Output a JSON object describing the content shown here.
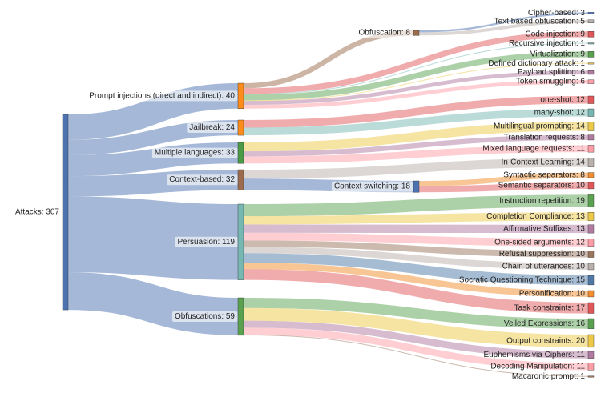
{
  "chart_data": {
    "type": "sankey",
    "title": "",
    "nodes": [
      {
        "id": "attacks",
        "label": "Attacks: 307",
        "value": 307,
        "color": "#4c72b0"
      },
      {
        "id": "pi",
        "label": "Prompt injections (direct and indirect): 40",
        "value": 40,
        "color": "#ff8c1a"
      },
      {
        "id": "jb",
        "label": "Jailbreak: 24",
        "value": 24,
        "color": "#ff8c1a"
      },
      {
        "id": "ml",
        "label": "Multiple languages: 33",
        "value": 33,
        "color": "#4a9a48"
      },
      {
        "id": "cb",
        "label": "Context-based: 32",
        "value": 32,
        "color": "#9c6b4e"
      },
      {
        "id": "pe",
        "label": "Persuasion: 119",
        "value": 119,
        "color": "#76b7b2"
      },
      {
        "id": "ob",
        "label": "Obfuscations: 59",
        "value": 59,
        "color": "#59a14f"
      },
      {
        "id": "obf8",
        "label": "Obfuscation: 8",
        "value": 8,
        "color": "#9c6b4e"
      },
      {
        "id": "cs",
        "label": "Context switching: 18",
        "value": 18,
        "color": "#4c72b0"
      },
      {
        "id": "cip",
        "label": "Cipher-based: 3",
        "value": 3,
        "color": "#4c72b0"
      },
      {
        "id": "tbo",
        "label": "Text based obfuscation: 5",
        "value": 5,
        "color": "#bab0ac"
      },
      {
        "id": "ci",
        "label": "Code injection: 9",
        "value": 9,
        "color": "#e15759"
      },
      {
        "id": "ri",
        "label": "Recursive injection: 1",
        "value": 1,
        "color": "#76b7b2"
      },
      {
        "id": "vi",
        "label": "Virtualization: 9",
        "value": 9,
        "color": "#59a14f"
      },
      {
        "id": "dda",
        "label": "Defined dictionary attack: 1",
        "value": 1,
        "color": "#edc948"
      },
      {
        "id": "ps",
        "label": "Payload splitting: 6",
        "value": 6,
        "color": "#b07aa1"
      },
      {
        "id": "ts",
        "label": "Token smuggling: 6",
        "value": 6,
        "color": "#ff9da7"
      },
      {
        "id": "os",
        "label": "one-shot: 12",
        "value": 12,
        "color": "#e15759"
      },
      {
        "id": "ms",
        "label": "many-shot: 12",
        "value": 12,
        "color": "#76b7b2"
      },
      {
        "id": "mp",
        "label": "Multilingual prompting: 14",
        "value": 14,
        "color": "#edc948"
      },
      {
        "id": "tr",
        "label": "Translation requests: 8",
        "value": 8,
        "color": "#b07aa1"
      },
      {
        "id": "mlr",
        "label": "Mixed language requests: 11",
        "value": 11,
        "color": "#ff9da7"
      },
      {
        "id": "icl",
        "label": "In-Context Learning: 14",
        "value": 14,
        "color": "#bab0ac"
      },
      {
        "id": "syn",
        "label": "Syntactic separators: 8",
        "value": 8,
        "color": "#f28e2b"
      },
      {
        "id": "sem",
        "label": "Semantic separators: 10",
        "value": 10,
        "color": "#e15759"
      },
      {
        "id": "ir",
        "label": "Instruction repetition: 19",
        "value": 19,
        "color": "#59a14f"
      },
      {
        "id": "cc",
        "label": "Completion Compliance: 13",
        "value": 13,
        "color": "#edc948"
      },
      {
        "id": "as",
        "label": "Affirmative Suffixes: 13",
        "value": 13,
        "color": "#b07aa1"
      },
      {
        "id": "osa",
        "label": "One-sided arguments: 12",
        "value": 12,
        "color": "#ff9da7"
      },
      {
        "id": "rs",
        "label": "Refusal suppression: 10",
        "value": 10,
        "color": "#9c755f"
      },
      {
        "id": "cu",
        "label": "Chain of utterances: 10",
        "value": 10,
        "color": "#bab0ac"
      },
      {
        "id": "sqt",
        "label": "Socratic Questioning Technique: 15",
        "value": 15,
        "color": "#4e79a7"
      },
      {
        "id": "per",
        "label": "Personification: 10",
        "value": 10,
        "color": "#f28e2b"
      },
      {
        "id": "tc",
        "label": "Task constraints: 17",
        "value": 17,
        "color": "#e15759"
      },
      {
        "id": "ve",
        "label": "Veiled Expressions: 16",
        "value": 16,
        "color": "#59a14f"
      },
      {
        "id": "oc",
        "label": "Output constraints: 20",
        "value": 20,
        "color": "#edc948"
      },
      {
        "id": "euc",
        "label": "Euphemisms via Ciphers: 11",
        "value": 11,
        "color": "#b07aa1"
      },
      {
        "id": "dm",
        "label": "Decoding Manipulation: 11",
        "value": 11,
        "color": "#ff9da7"
      },
      {
        "id": "mac",
        "label": "Macaronic prompt: 1",
        "value": 1,
        "color": "#9c755f"
      }
    ],
    "links": [
      {
        "source": "attacks",
        "target": "pi",
        "value": 40
      },
      {
        "source": "attacks",
        "target": "jb",
        "value": 24
      },
      {
        "source": "attacks",
        "target": "ml",
        "value": 33
      },
      {
        "source": "attacks",
        "target": "cb",
        "value": 32
      },
      {
        "source": "attacks",
        "target": "pe",
        "value": 119
      },
      {
        "source": "attacks",
        "target": "ob",
        "value": 59
      },
      {
        "source": "pi",
        "target": "obf8",
        "value": 8
      },
      {
        "source": "pi",
        "target": "ci",
        "value": 9
      },
      {
        "source": "pi",
        "target": "ri",
        "value": 1
      },
      {
        "source": "pi",
        "target": "vi",
        "value": 9
      },
      {
        "source": "pi",
        "target": "dda",
        "value": 1
      },
      {
        "source": "pi",
        "target": "ps",
        "value": 6
      },
      {
        "source": "pi",
        "target": "ts",
        "value": 6
      },
      {
        "source": "obf8",
        "target": "cip",
        "value": 3
      },
      {
        "source": "obf8",
        "target": "tbo",
        "value": 5
      },
      {
        "source": "jb",
        "target": "os",
        "value": 12
      },
      {
        "source": "jb",
        "target": "ms",
        "value": 12
      },
      {
        "source": "ml",
        "target": "mp",
        "value": 14
      },
      {
        "source": "ml",
        "target": "tr",
        "value": 8
      },
      {
        "source": "ml",
        "target": "mlr",
        "value": 11
      },
      {
        "source": "cb",
        "target": "icl",
        "value": 14
      },
      {
        "source": "cb",
        "target": "cs",
        "value": 18
      },
      {
        "source": "cs",
        "target": "syn",
        "value": 8
      },
      {
        "source": "cs",
        "target": "sem",
        "value": 10
      },
      {
        "source": "pe",
        "target": "ir",
        "value": 19
      },
      {
        "source": "pe",
        "target": "cc",
        "value": 13
      },
      {
        "source": "pe",
        "target": "as",
        "value": 13
      },
      {
        "source": "pe",
        "target": "osa",
        "value": 12
      },
      {
        "source": "pe",
        "target": "rs",
        "value": 10
      },
      {
        "source": "pe",
        "target": "cu",
        "value": 10
      },
      {
        "source": "pe",
        "target": "sqt",
        "value": 15
      },
      {
        "source": "pe",
        "target": "per",
        "value": 10
      },
      {
        "source": "pe",
        "target": "tc",
        "value": 17
      },
      {
        "source": "ob",
        "target": "ve",
        "value": 16
      },
      {
        "source": "ob",
        "target": "oc",
        "value": 20
      },
      {
        "source": "ob",
        "target": "euc",
        "value": 11
      },
      {
        "source": "ob",
        "target": "dm",
        "value": 11
      },
      {
        "source": "ob",
        "target": "mac",
        "value": 1
      }
    ]
  }
}
